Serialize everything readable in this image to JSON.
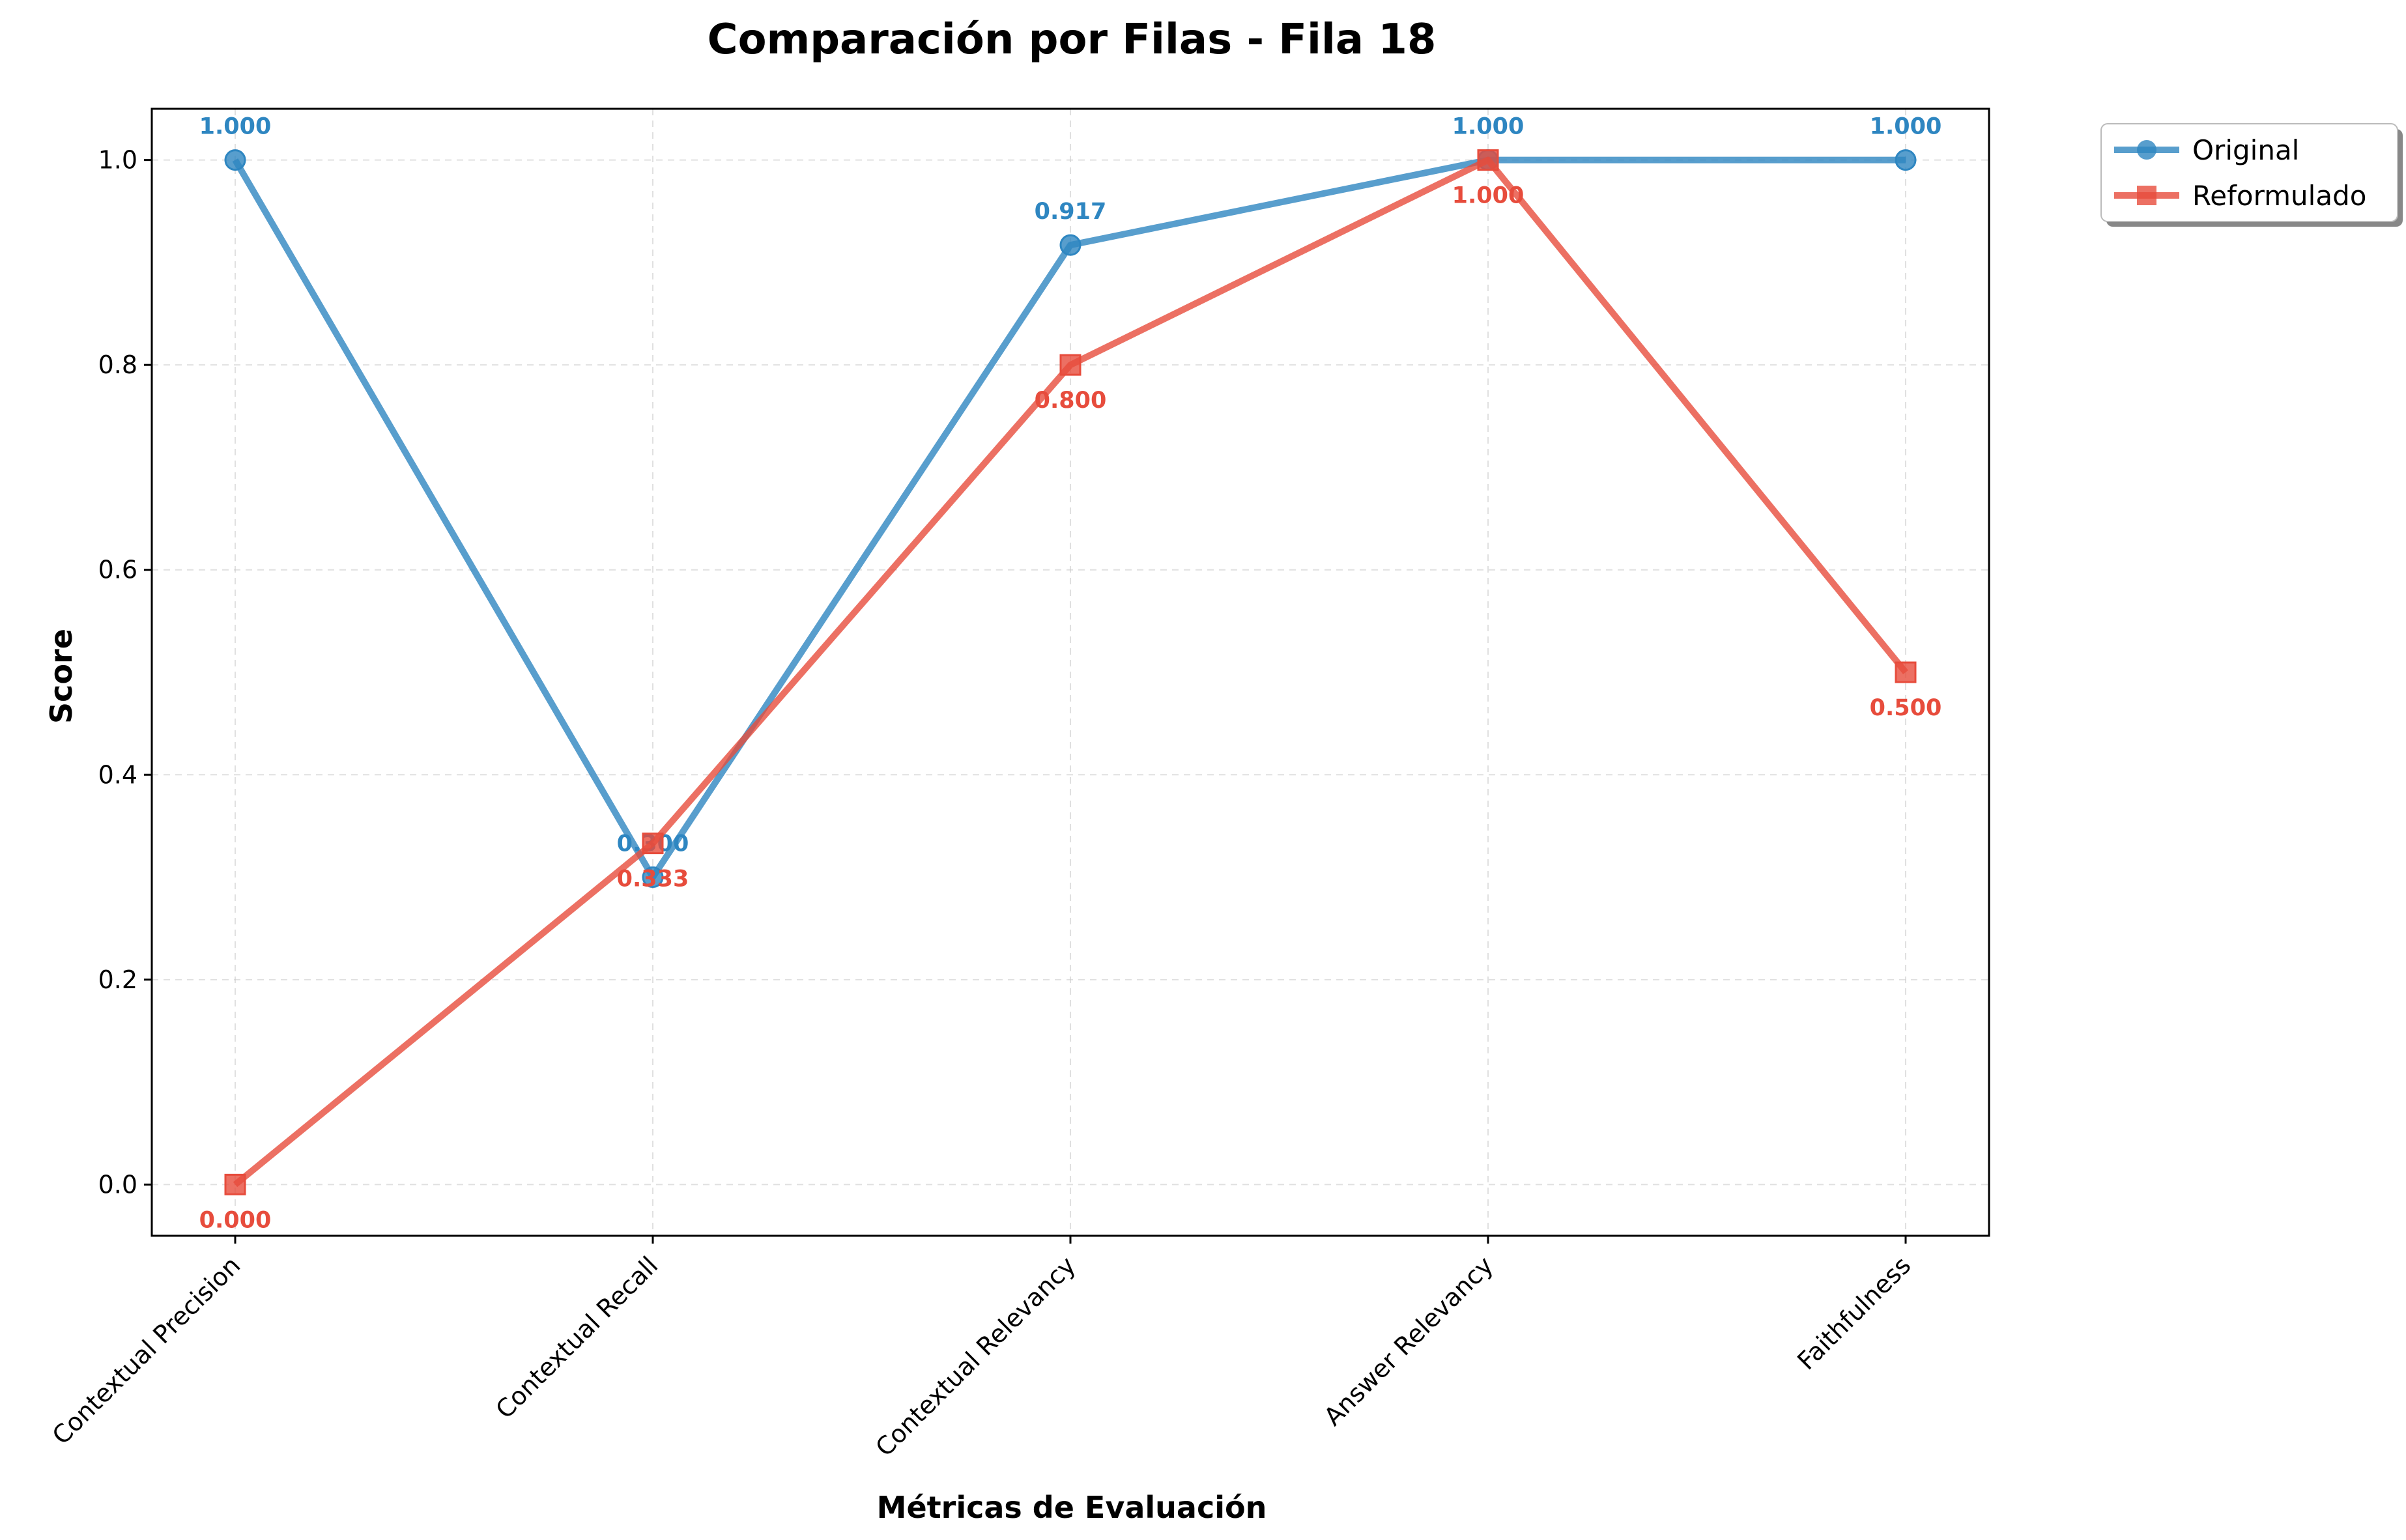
{
  "chart_data": {
    "type": "line",
    "title": "Comparación por Filas - Fila 18",
    "xlabel": "Métricas de Evaluación",
    "ylabel": "Score",
    "categories": [
      "Contextual Precision",
      "Contextual Recall",
      "Contextual Relevancy",
      "Answer Relevancy",
      "Faithfulness"
    ],
    "ylim": [
      -0.05,
      1.05
    ],
    "yticks": [
      "0.0",
      "0.2",
      "0.4",
      "0.6",
      "0.8",
      "1.0"
    ],
    "grid": true,
    "legend_position": "outside-top-right",
    "series": [
      {
        "name": "Original",
        "values": [
          1.0,
          0.3,
          0.917,
          1.0,
          1.0
        ],
        "labels": [
          "1.000",
          "0.300",
          "0.917",
          "1.000",
          "1.000"
        ],
        "marker": "circle",
        "color": "#2E86C1"
      },
      {
        "name": "Reformulado",
        "values": [
          0.0,
          0.333,
          0.8,
          1.0,
          0.5
        ],
        "labels": [
          "0.000",
          "0.333",
          "0.800",
          "1.000",
          "0.500"
        ],
        "marker": "square",
        "color": "#E74C3C"
      }
    ]
  }
}
